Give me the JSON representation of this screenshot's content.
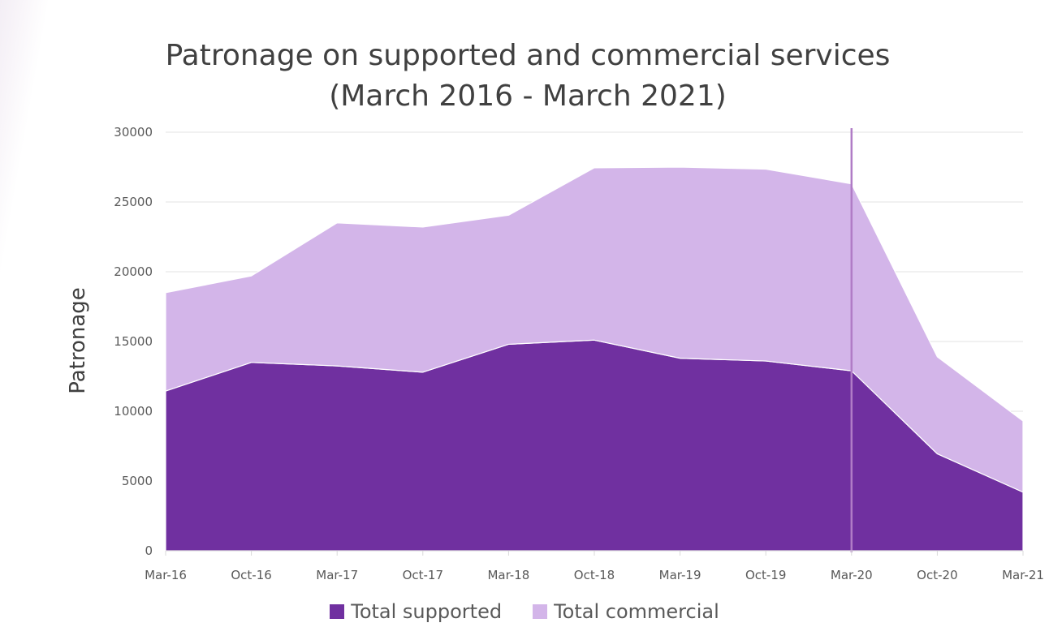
{
  "chart_data": {
    "type": "area",
    "stacked": true,
    "title": "Patronage on supported and commercial services (March 2016 - March 2021)",
    "xlabel": "",
    "ylabel": "Patronage",
    "ylim": [
      0,
      30000
    ],
    "yticks": [
      0,
      5000,
      10000,
      15000,
      20000,
      25000,
      30000
    ],
    "categories": [
      "Mar-16",
      "Oct-16",
      "Mar-17",
      "Oct-17",
      "Mar-18",
      "Oct-18",
      "Mar-19",
      "Oct-19",
      "Mar-20",
      "Oct-20",
      "Mar-21"
    ],
    "series": [
      {
        "name": "Total supported",
        "color": "#7030a0",
        "values": [
          11450,
          13500,
          13250,
          12800,
          14800,
          15100,
          13800,
          13600,
          12900,
          6950,
          4200
        ]
      },
      {
        "name": "Total commercial",
        "color": "#d3b5e9",
        "values": [
          7050,
          6200,
          10250,
          10400,
          9250,
          12350,
          13700,
          13750,
          13400,
          6950,
          5100
        ]
      }
    ],
    "marker_line": {
      "category": "Mar-20",
      "color": "#b07cc6"
    },
    "grid": true,
    "legend_position": "bottom"
  }
}
